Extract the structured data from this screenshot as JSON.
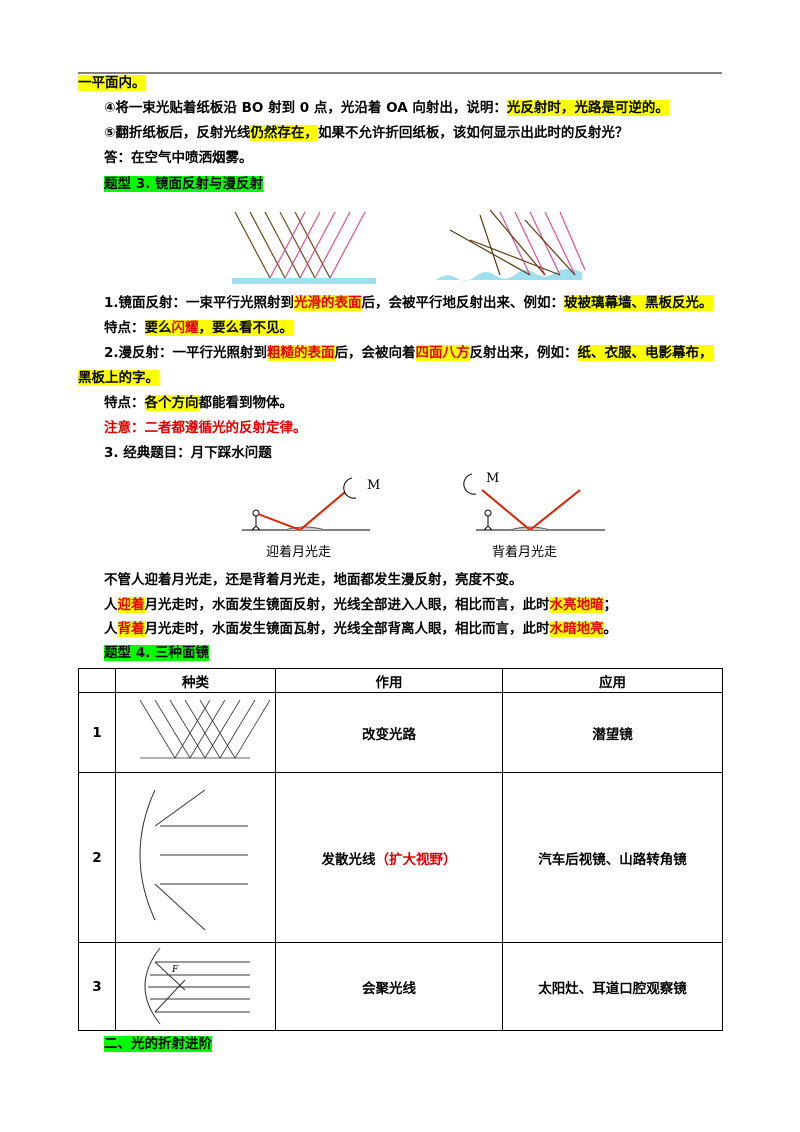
{
  "paragraphs": [
    [
      "一平面内。"
    ],
    [
      "④将一束光贴着纸板沿 BO 射到 0 点，光沿着 OA 向射出，说明：",
      "光反射时，光路是可逆的。"
    ],
    [
      "⑤翻折纸板后，反射光线",
      "仍然存在，",
      "如果不允许折回纸板，该如何显示出此时的反射光？"
    ],
    [
      "答：在空气中喷洒烟雾。"
    ],
    [
      "题型 3. 镜面反射与漫反射"
    ],
    [
      "1.镜面反射：一束平行光照射到",
      "光滑的表面",
      "后，会被平行地反射出来、例如：",
      "玻被璃幕墙、黑板反光。"
    ],
    [
      "特点：",
      "要么",
      "闪耀",
      "，要么看不见。"
    ],
    [
      "2.漫反射：一平行光照射到",
      "粗糙的表面",
      "后，会被向着",
      "四面八方",
      "反射出来，例如：",
      "纸、衣服、电影幕布，",
      "黑板上的字。"
    ],
    [
      "特点：",
      "各个方向",
      "都能看到物体。"
    ],
    [
      "注意：二者都遵循光的反射定律。"
    ],
    [
      "3. 经典题目：月下踩水问题"
    ],
    [
      "不管人迎着月光走，还是背着月光走，地面都发生漫反射，亮度不变。"
    ],
    [
      "人",
      "迎着",
      "月光走时，水面发生镜面反射，光线全部进入人眼，相比而言，此时",
      "水亮地暗",
      "；"
    ],
    [
      "人",
      "背着",
      "月光走时，水面发生镜面瓦射，光线全部背离人眼，相比而言，此时",
      "水暗地亮",
      "。"
    ],
    [
      "题型 4. 三种面镜"
    ],
    [
      "二、光的折射进阶"
    ]
  ],
  "figure": {
    "left_caption": "迎着月光走",
    "right_caption": "背着月光走",
    "moon_label_left": "M",
    "moon_label_right": "M"
  },
  "table": {
    "header": [
      "种类",
      "作用",
      "应用"
    ],
    "rows": [
      {
        "num": "1",
        "use": "改变光路",
        "application": "潜望镜"
      },
      {
        "num": "2",
        "use": "发散光线",
        "use_note": "（扩大视野）",
        "application": "汽车后视镜、山路转角镜"
      },
      {
        "num": "3",
        "use": "会聚光线",
        "application": "太阳灶、耳道口腔观察镜",
        "diagram_label": "F"
      }
    ]
  }
}
